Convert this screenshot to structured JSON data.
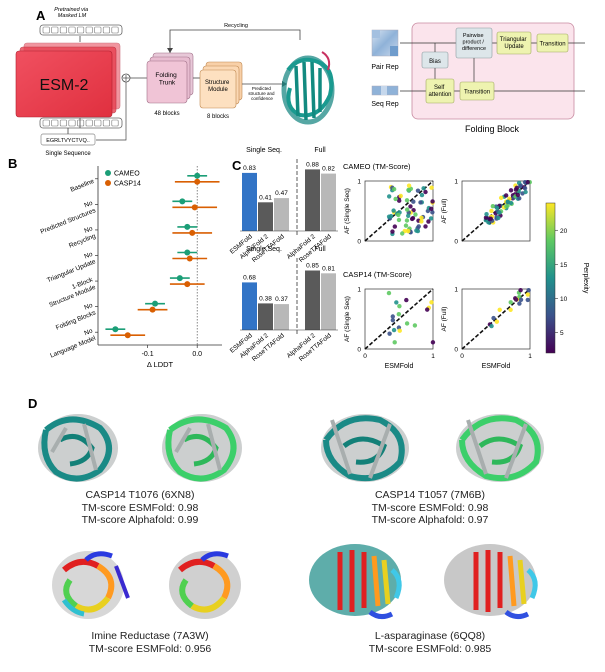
{
  "panel_labels": {
    "a": "A",
    "b": "B",
    "c": "C",
    "d": "D"
  },
  "panel_a": {
    "pretrained_note": "Pretrained via\nMasked LM",
    "esm_label": "ESM-2",
    "sequence_text": "EGRLTVYCTVQ..",
    "single_sequence_label": "Single Sequence",
    "folding_trunk_label": "Folding\nTrunk",
    "folding_trunk_blocks": "48 blocks",
    "structure_module_label": "Structure\nModule",
    "structure_module_blocks": "8 blocks",
    "predicted_note": "Predicted\nstructure and\nconfidence",
    "recycling_label": "Recycling",
    "pair_rep_label": "Pair Rep",
    "seq_rep_label": "Seq Rep",
    "bias_label": "Bias",
    "pairwise_label": "Pairwise\nproduct /\ndifference",
    "triangular_label": "Triangular\nUpdate",
    "transition_label": "Transition",
    "self_attention_label": "Self\nattention",
    "folding_block_label": "Folding Block"
  },
  "panel_b": {
    "categories": [
      "Baseline",
      "No\nPredicted Structures",
      "No\nRecycling",
      "No\nTriangular Update",
      "1-Block\nStructure Module",
      "No\nFolding Blocks",
      "No\nLanguage Model"
    ],
    "series": [
      {
        "name": "CAMEO",
        "color": "#1b9e77",
        "values": [
          0.0,
          -0.03,
          -0.02,
          -0.02,
          -0.035,
          -0.085,
          -0.165
        ],
        "err": [
          0.02,
          0.02,
          0.02,
          0.02,
          0.02,
          0.02,
          0.02
        ]
      },
      {
        "name": "CASP14",
        "color": "#d95f02",
        "values": [
          0.0,
          -0.005,
          -0.01,
          -0.015,
          -0.02,
          -0.09,
          -0.14
        ],
        "err": [
          0.045,
          0.045,
          0.04,
          0.035,
          0.035,
          0.03,
          0.035
        ]
      }
    ],
    "xticks": [
      "-0.1",
      "0.0"
    ],
    "xtick_values": [
      -0.1,
      0.0
    ],
    "xlabel": "Δ LDDT",
    "xlim": [
      -0.2,
      0.05
    ]
  },
  "panel_c_bars": [
    {
      "single_label": "Single Seq.",
      "full_label": "Full",
      "bars": [
        {
          "name": "ESMFold",
          "value": 0.83,
          "label": "0.83",
          "color": "#3274c6"
        },
        {
          "name": "AlphaFold 2",
          "value": 0.41,
          "label": "0.41",
          "color": "#5a5a5a"
        },
        {
          "name": "RoseTTAFold",
          "value": 0.47,
          "label": "0.47",
          "color": "#b8b8b8"
        },
        {
          "name": "AlphaFold 2",
          "value": 0.88,
          "label": "0.88",
          "color": "#5a5a5a"
        },
        {
          "name": "RoseTTAFold",
          "value": 0.82,
          "label": "0.82",
          "color": "#b8b8b8"
        }
      ]
    },
    {
      "single_label": "Single Seq.",
      "full_label": "Full",
      "bars": [
        {
          "name": "ESMFold",
          "value": 0.68,
          "label": "0.68",
          "color": "#3274c6"
        },
        {
          "name": "AlphaFold 2",
          "value": 0.38,
          "label": "0.38",
          "color": "#5a5a5a"
        },
        {
          "name": "RoseTTAFold",
          "value": 0.37,
          "label": "0.37",
          "color": "#b8b8b8"
        },
        {
          "name": "AlphaFold 2",
          "value": 0.85,
          "label": "0.85",
          "color": "#5a5a5a"
        },
        {
          "name": "RoseTTAFold",
          "value": 0.81,
          "label": "0.81",
          "color": "#b8b8b8"
        }
      ]
    }
  ],
  "panel_c_scatter": {
    "cameo_title": "CAMEO (TM-Score)",
    "casp_title": "CASP14 (TM-Score)",
    "ylabel_single": "AF (Single Seq)",
    "ylabel_full": "AF (Full)",
    "xlabel": "ESMFold",
    "ticks": [
      "0",
      "1"
    ],
    "tick_values": [
      0,
      1
    ],
    "colorbar_label": "Perplexity",
    "colorbar_ticks": [
      "5",
      "10",
      "15",
      "20"
    ],
    "colorbar_tick_values": [
      5,
      10,
      15,
      20
    ],
    "colorbar_range": [
      2,
      24
    ],
    "colormap": [
      "#440154",
      "#3b528b",
      "#21918c",
      "#5ec962",
      "#fde725"
    ]
  },
  "panel_d": {
    "captions": [
      "CASP14 T1076 (6XN8)\nTM-score ESMFold: 0.98\nTM-score Alphafold: 0.99",
      "CASP14 T1057 (7M6B)\nTM-score ESMFold: 0.98\nTM-score Alphafold: 0.97",
      "Imine Reductase (7A3W)\nTM-score ESMFold: 0.956",
      "L-asparaginase (6QQ8)\nTM-score ESMFold: 0.985"
    ]
  }
}
